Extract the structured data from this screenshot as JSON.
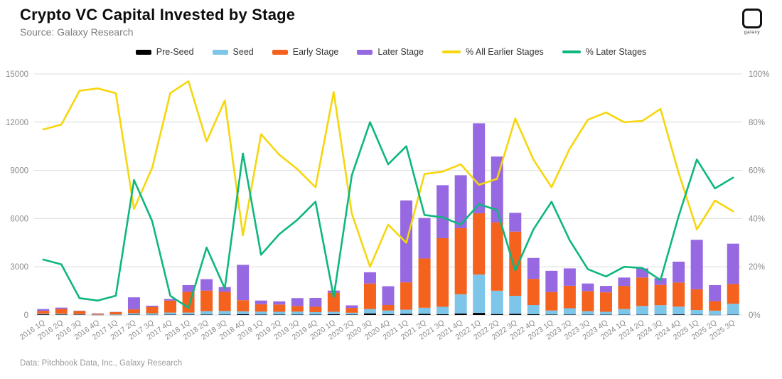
{
  "header": {
    "title": "Crypto VC Capital Invested by Stage",
    "subtitle": "Source: Galaxy Research",
    "logo_text": "galaxy"
  },
  "footer": {
    "source": "Data: Pitchbook Data, Inc., Galaxy Research"
  },
  "colors": {
    "pre_seed": "#000000",
    "seed": "#7DC6EA",
    "early_stage": "#F4621D",
    "later_stage": "#9669E2",
    "pct_earlier": "#F6D60D",
    "pct_later": "#0EB77D",
    "grid": "#dcdcdc",
    "axis_text": "#8b8b8b"
  },
  "legend": [
    {
      "label": "Pre-Seed",
      "swatch": "bar",
      "color": "#000000"
    },
    {
      "label": "Seed",
      "swatch": "bar",
      "color": "#7DC6EA"
    },
    {
      "label": "Early Stage",
      "swatch": "bar",
      "color": "#F4621D"
    },
    {
      "label": "Later Stage",
      "swatch": "bar",
      "color": "#9669E2"
    },
    {
      "label": "% All Earlier Stages",
      "swatch": "line",
      "color": "#F6D60D"
    },
    {
      "label": "% Later Stages",
      "swatch": "line",
      "color": "#0EB77D"
    }
  ],
  "chart_data": {
    "type": "bar",
    "subtype": "stacked-bars-with-percent-lines",
    "title": "Crypto VC Capital Invested by Stage",
    "categories": [
      "2016 1Q",
      "2016 2Q",
      "2016 3Q",
      "2016 4Q",
      "2017 1Q",
      "2017 2Q",
      "2017 3Q",
      "2017 4Q",
      "2018 1Q",
      "2018 2Q",
      "2018 3Q",
      "2018 4Q",
      "2019 1Q",
      "2019 2Q",
      "2019 3Q",
      "2019 4Q",
      "2020 1Q",
      "2020 2Q",
      "2020 3Q",
      "2020 4Q",
      "2021 1Q",
      "2021 2Q",
      "2021 3Q",
      "2021 4Q",
      "2022 1Q",
      "2022 2Q",
      "2022 3Q",
      "2022 4Q",
      "2023 1Q",
      "2023 2Q",
      "2023 3Q",
      "2023 4Q",
      "2024 1Q",
      "2024 2Q",
      "2024 3Q",
      "2024 4Q",
      "2025 1Q",
      "2025 2Q",
      "2025 3Q"
    ],
    "series": [
      {
        "name": "Pre-Seed",
        "type": "bar",
        "axis": "left",
        "color": "#000000",
        "values": [
          40,
          30,
          20,
          10,
          10,
          20,
          15,
          20,
          30,
          30,
          30,
          50,
          30,
          30,
          30,
          30,
          50,
          30,
          100,
          50,
          70,
          70,
          50,
          90,
          130,
          60,
          75,
          50,
          30,
          30,
          20,
          20,
          20,
          20,
          30,
          40,
          20,
          10,
          20
        ]
      },
      {
        "name": "Seed",
        "type": "bar",
        "axis": "left",
        "color": "#7DC6EA",
        "values": [
          40,
          50,
          30,
          20,
          30,
          90,
          90,
          130,
          120,
          210,
          220,
          180,
          180,
          170,
          180,
          150,
          150,
          110,
          270,
          230,
          260,
          380,
          460,
          1200,
          2390,
          1450,
          1120,
          570,
          250,
          390,
          220,
          180,
          350,
          540,
          580,
          480,
          290,
          260,
          680
        ]
      },
      {
        "name": "Early Stage",
        "type": "bar",
        "axis": "left",
        "color": "#F4621D",
        "values": [
          180,
          300,
          200,
          60,
          140,
          240,
          400,
          750,
          1290,
          1280,
          1190,
          690,
          460,
          450,
          350,
          330,
          1190,
          300,
          1590,
          340,
          1700,
          3070,
          4270,
          4110,
          3810,
          4260,
          3995,
          1630,
          1150,
          1400,
          1250,
          1210,
          1440,
          1770,
          1260,
          1500,
          1290,
          590,
          1230
        ]
      },
      {
        "name": "Later Stage",
        "type": "bar",
        "axis": "left",
        "color": "#9669E2",
        "values": [
          110,
          80,
          20,
          10,
          10,
          750,
          75,
          100,
          420,
          710,
          300,
          2200,
          230,
          200,
          490,
          550,
          130,
          160,
          700,
          1170,
          5100,
          2520,
          3300,
          3300,
          5600,
          4090,
          1170,
          1300,
          1320,
          1080,
          470,
          400,
          520,
          570,
          420,
          1300,
          3080,
          1000,
          2510
        ]
      },
      {
        "name": "% All Earlier Stages",
        "type": "line",
        "axis": "right",
        "color": "#F6D60D",
        "values": [
          77,
          79,
          93,
          94,
          92,
          44,
          61,
          92,
          97,
          72,
          89,
          33,
          75,
          66.5,
          60.5,
          53,
          92.5,
          42,
          20,
          37.5,
          30,
          58.5,
          59.5,
          62.5,
          54,
          56.5,
          81.5,
          64.5,
          53,
          69,
          81,
          84,
          80,
          80.5,
          85.5,
          59,
          35.5,
          47.5,
          43
        ]
      },
      {
        "name": "% Later Stages",
        "type": "line",
        "axis": "right",
        "color": "#0EB77D",
        "values": [
          23,
          21,
          7,
          6,
          8,
          56,
          39,
          8,
          3,
          28,
          11,
          67,
          25,
          33.5,
          39.5,
          47,
          7.5,
          58,
          80,
          62.5,
          70,
          41.5,
          40.5,
          37.5,
          46,
          43.5,
          18.5,
          35.5,
          47,
          31,
          19,
          16,
          20,
          19.5,
          14.5,
          41,
          64.5,
          52.5,
          57
        ]
      }
    ],
    "left_axis": {
      "min": 0,
      "max": 15000,
      "ticks": [
        0,
        3000,
        6000,
        9000,
        12000,
        15000
      ]
    },
    "right_axis": {
      "min": 0,
      "max": 100,
      "tick_labels": [
        "0%",
        "20%",
        "40%",
        "60%",
        "80%",
        "100%"
      ]
    },
    "grid": true,
    "legend_position": "top"
  }
}
